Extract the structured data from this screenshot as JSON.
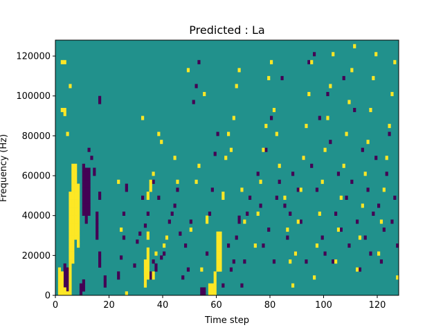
{
  "chart_data": {
    "type": "heatmap",
    "title": "Predicted : La",
    "xlabel": "Time step",
    "ylabel": "Frequency (Hz)",
    "xlim": [
      0,
      128
    ],
    "ylim": [
      0,
      128000
    ],
    "x_ticks": [
      0,
      20,
      40,
      60,
      80,
      100,
      120
    ],
    "x_tick_labels": [
      "0",
      "20",
      "40",
      "60",
      "80",
      "100",
      "120"
    ],
    "y_ticks": [
      0,
      20000,
      40000,
      60000,
      80000,
      100000,
      120000
    ],
    "y_tick_labels": [
      "0",
      "20000",
      "40000",
      "60000",
      "80000",
      "100000",
      "120000"
    ],
    "grid": false,
    "n_time_steps": 128,
    "n_frequency_bins": 64,
    "bin_height_hz": 2000,
    "value_levels": {
      "low": -1,
      "mid": 0,
      "high": 1
    },
    "colors": {
      "low": "#440154",
      "mid": "#21918c",
      "high": "#fde725"
    },
    "background_value": 0,
    "low_cells": [
      [
        3,
        2
      ],
      [
        3,
        3
      ],
      [
        3,
        4
      ],
      [
        3,
        5
      ],
      [
        3,
        6
      ],
      [
        3,
        7
      ],
      [
        4,
        1
      ],
      [
        4,
        2
      ],
      [
        4,
        3
      ],
      [
        4,
        4
      ],
      [
        4,
        5
      ],
      [
        4,
        6
      ],
      [
        9,
        0
      ],
      [
        9,
        1
      ],
      [
        9,
        2
      ],
      [
        10,
        1
      ],
      [
        10,
        2
      ],
      [
        10,
        3
      ],
      [
        10,
        20
      ],
      [
        10,
        21
      ],
      [
        10,
        22
      ],
      [
        10,
        23
      ],
      [
        10,
        24
      ],
      [
        10,
        25
      ],
      [
        10,
        26
      ],
      [
        10,
        27
      ],
      [
        10,
        28
      ],
      [
        10,
        29
      ],
      [
        10,
        30
      ],
      [
        10,
        31
      ],
      [
        10,
        32
      ],
      [
        11,
        18
      ],
      [
        11,
        19
      ],
      [
        11,
        20
      ],
      [
        11,
        21
      ],
      [
        11,
        22
      ],
      [
        11,
        23
      ],
      [
        11,
        24
      ],
      [
        11,
        25
      ],
      [
        11,
        26
      ],
      [
        11,
        27
      ],
      [
        11,
        28
      ],
      [
        11,
        29
      ],
      [
        11,
        30
      ],
      [
        11,
        31
      ],
      [
        12,
        20
      ],
      [
        12,
        21
      ],
      [
        12,
        22
      ],
      [
        12,
        23
      ],
      [
        12,
        24
      ],
      [
        12,
        25
      ],
      [
        12,
        26
      ],
      [
        12,
        27
      ],
      [
        12,
        28
      ],
      [
        12,
        29
      ],
      [
        12,
        30
      ],
      [
        12,
        31
      ],
      [
        12,
        36
      ],
      [
        13,
        34
      ],
      [
        14,
        30
      ],
      [
        14,
        31
      ],
      [
        15,
        14
      ],
      [
        15,
        15
      ],
      [
        15,
        16
      ],
      [
        15,
        17
      ],
      [
        15,
        18
      ],
      [
        15,
        19
      ],
      [
        15,
        20
      ],
      [
        16,
        7
      ],
      [
        16,
        8
      ],
      [
        16,
        9
      ],
      [
        16,
        10
      ],
      [
        16,
        24
      ],
      [
        16,
        25
      ],
      [
        16,
        48
      ],
      [
        16,
        49
      ],
      [
        18,
        2
      ],
      [
        18,
        3
      ],
      [
        18,
        4
      ],
      [
        23,
        4
      ],
      [
        23,
        5
      ],
      [
        24,
        9
      ],
      [
        25,
        14
      ],
      [
        25,
        20
      ],
      [
        26,
        26
      ],
      [
        26,
        27
      ],
      [
        29,
        7
      ],
      [
        30,
        13
      ],
      [
        31,
        15
      ],
      [
        32,
        24
      ],
      [
        33,
        3
      ],
      [
        33,
        4
      ],
      [
        33,
        17
      ],
      [
        34,
        20
      ],
      [
        35,
        4
      ],
      [
        35,
        5
      ],
      [
        36,
        8
      ],
      [
        36,
        28
      ],
      [
        37,
        6
      ],
      [
        37,
        7
      ],
      [
        38,
        24
      ],
      [
        39,
        9
      ],
      [
        40,
        10
      ],
      [
        41,
        14
      ],
      [
        42,
        18
      ],
      [
        43,
        20
      ],
      [
        44,
        22
      ],
      [
        45,
        26
      ],
      [
        46,
        15
      ],
      [
        47,
        4
      ],
      [
        48,
        12
      ],
      [
        49,
        6
      ],
      [
        50,
        18
      ],
      [
        51,
        48
      ],
      [
        52,
        52
      ],
      [
        53,
        58
      ],
      [
        54,
        0
      ],
      [
        54,
        1
      ],
      [
        55,
        0
      ],
      [
        55,
        1
      ],
      [
        56,
        10
      ],
      [
        57,
        20
      ],
      [
        58,
        26
      ],
      [
        59,
        35
      ],
      [
        60,
        40
      ],
      [
        62,
        2
      ],
      [
        64,
        12
      ],
      [
        65,
        6
      ],
      [
        66,
        8
      ],
      [
        67,
        14
      ],
      [
        68,
        18
      ],
      [
        68,
        19
      ],
      [
        69,
        2
      ],
      [
        70,
        8
      ],
      [
        71,
        20
      ],
      [
        72,
        24
      ],
      [
        75,
        30
      ],
      [
        76,
        22
      ],
      [
        77,
        12
      ],
      [
        78,
        36
      ],
      [
        79,
        16
      ],
      [
        80,
        44
      ],
      [
        81,
        8
      ],
      [
        82,
        24
      ],
      [
        83,
        28
      ],
      [
        84,
        54
      ],
      [
        85,
        22
      ],
      [
        86,
        14
      ],
      [
        87,
        20
      ],
      [
        88,
        30
      ],
      [
        89,
        10
      ],
      [
        90,
        26
      ],
      [
        91,
        18
      ],
      [
        92,
        34
      ],
      [
        93,
        8
      ],
      [
        94,
        58
      ],
      [
        95,
        32
      ],
      [
        96,
        60
      ],
      [
        97,
        26
      ],
      [
        98,
        44
      ],
      [
        99,
        14
      ],
      [
        100,
        10
      ],
      [
        101,
        50
      ],
      [
        102,
        38
      ],
      [
        103,
        8
      ],
      [
        104,
        20
      ],
      [
        105,
        30
      ],
      [
        106,
        16
      ],
      [
        107,
        54
      ],
      [
        108,
        24
      ],
      [
        109,
        12
      ],
      [
        110,
        28
      ],
      [
        111,
        46
      ],
      [
        112,
        18
      ],
      [
        113,
        6
      ],
      [
        114,
        36
      ],
      [
        115,
        14
      ],
      [
        116,
        26
      ],
      [
        117,
        10
      ],
      [
        118,
        20
      ],
      [
        119,
        34
      ],
      [
        120,
        22
      ],
      [
        121,
        8
      ],
      [
        122,
        16
      ],
      [
        123,
        30
      ],
      [
        124,
        40
      ],
      [
        125,
        18
      ],
      [
        126,
        24
      ],
      [
        127,
        12
      ]
    ],
    "high_cells": [
      [
        1,
        0
      ],
      [
        1,
        1
      ],
      [
        1,
        2
      ],
      [
        1,
        3
      ],
      [
        1,
        4
      ],
      [
        1,
        5
      ],
      [
        1,
        6
      ],
      [
        2,
        0
      ],
      [
        2,
        1
      ],
      [
        2,
        2
      ],
      [
        2,
        3
      ],
      [
        2,
        4
      ],
      [
        2,
        5
      ],
      [
        3,
        0
      ],
      [
        3,
        1
      ],
      [
        4,
        0
      ],
      [
        5,
        0
      ],
      [
        5,
        1
      ],
      [
        5,
        2
      ],
      [
        5,
        3
      ],
      [
        5,
        4
      ],
      [
        5,
        5
      ],
      [
        5,
        6
      ],
      [
        5,
        7
      ],
      [
        5,
        8
      ],
      [
        5,
        9
      ],
      [
        5,
        10
      ],
      [
        5,
        11
      ],
      [
        5,
        12
      ],
      [
        5,
        13
      ],
      [
        5,
        14
      ],
      [
        5,
        15
      ],
      [
        5,
        16
      ],
      [
        5,
        17
      ],
      [
        5,
        18
      ],
      [
        5,
        19
      ],
      [
        5,
        20
      ],
      [
        5,
        21
      ],
      [
        5,
        22
      ],
      [
        5,
        23
      ],
      [
        5,
        24
      ],
      [
        5,
        25
      ],
      [
        6,
        8
      ],
      [
        6,
        9
      ],
      [
        6,
        10
      ],
      [
        6,
        11
      ],
      [
        6,
        12
      ],
      [
        6,
        13
      ],
      [
        6,
        14
      ],
      [
        6,
        15
      ],
      [
        6,
        16
      ],
      [
        6,
        17
      ],
      [
        6,
        18
      ],
      [
        6,
        19
      ],
      [
        6,
        20
      ],
      [
        6,
        21
      ],
      [
        6,
        22
      ],
      [
        6,
        23
      ],
      [
        6,
        24
      ],
      [
        6,
        25
      ],
      [
        6,
        26
      ],
      [
        6,
        27
      ],
      [
        6,
        28
      ],
      [
        6,
        29
      ],
      [
        6,
        30
      ],
      [
        6,
        31
      ],
      [
        6,
        32
      ],
      [
        7,
        14
      ],
      [
        7,
        15
      ],
      [
        7,
        16
      ],
      [
        7,
        17
      ],
      [
        7,
        18
      ],
      [
        7,
        19
      ],
      [
        7,
        20
      ],
      [
        7,
        21
      ],
      [
        7,
        22
      ],
      [
        7,
        23
      ],
      [
        7,
        24
      ],
      [
        7,
        25
      ],
      [
        7,
        26
      ],
      [
        7,
        27
      ],
      [
        7,
        28
      ],
      [
        7,
        29
      ],
      [
        7,
        30
      ],
      [
        7,
        31
      ],
      [
        7,
        32
      ],
      [
        8,
        12
      ],
      [
        8,
        13
      ],
      [
        8,
        14
      ],
      [
        8,
        15
      ],
      [
        8,
        16
      ],
      [
        8,
        17
      ],
      [
        8,
        18
      ],
      [
        8,
        19
      ],
      [
        8,
        20
      ],
      [
        8,
        21
      ],
      [
        8,
        22
      ],
      [
        8,
        23
      ],
      [
        8,
        24
      ],
      [
        8,
        25
      ],
      [
        8,
        26
      ],
      [
        8,
        27
      ],
      [
        3,
        45
      ],
      [
        3,
        46
      ],
      [
        2,
        46
      ],
      [
        4,
        40
      ],
      [
        3,
        58
      ],
      [
        2,
        58
      ],
      [
        5,
        52
      ],
      [
        23,
        28
      ],
      [
        24,
        16
      ],
      [
        26,
        0
      ],
      [
        32,
        44
      ],
      [
        33,
        2
      ],
      [
        33,
        3
      ],
      [
        33,
        4
      ],
      [
        33,
        5
      ],
      [
        33,
        6
      ],
      [
        33,
        7
      ],
      [
        33,
        8
      ],
      [
        34,
        4
      ],
      [
        34,
        5
      ],
      [
        34,
        6
      ],
      [
        34,
        7
      ],
      [
        34,
        8
      ],
      [
        34,
        9
      ],
      [
        34,
        10
      ],
      [
        34,
        11
      ],
      [
        34,
        14
      ],
      [
        34,
        15
      ],
      [
        34,
        24
      ],
      [
        34,
        25
      ],
      [
        35,
        26
      ],
      [
        35,
        27
      ],
      [
        35,
        28
      ],
      [
        36,
        4
      ],
      [
        36,
        5
      ],
      [
        36,
        30
      ],
      [
        37,
        10
      ],
      [
        38,
        40
      ],
      [
        39,
        38
      ],
      [
        40,
        12
      ],
      [
        41,
        14
      ],
      [
        44,
        34
      ],
      [
        45,
        28
      ],
      [
        49,
        56
      ],
      [
        50,
        16
      ],
      [
        52,
        28
      ],
      [
        53,
        32
      ],
      [
        54,
        6
      ],
      [
        55,
        50
      ],
      [
        56,
        18
      ],
      [
        56,
        19
      ],
      [
        57,
        0
      ],
      [
        57,
        1
      ],
      [
        57,
        2
      ],
      [
        58,
        0
      ],
      [
        58,
        1
      ],
      [
        58,
        2
      ],
      [
        59,
        0
      ],
      [
        59,
        1
      ],
      [
        59,
        2
      ],
      [
        59,
        3
      ],
      [
        59,
        4
      ],
      [
        59,
        5
      ],
      [
        60,
        6
      ],
      [
        60,
        7
      ],
      [
        60,
        8
      ],
      [
        60,
        9
      ],
      [
        60,
        10
      ],
      [
        60,
        11
      ],
      [
        60,
        12
      ],
      [
        60,
        13
      ],
      [
        60,
        14
      ],
      [
        60,
        15
      ],
      [
        61,
        6
      ],
      [
        61,
        7
      ],
      [
        61,
        8
      ],
      [
        61,
        9
      ],
      [
        61,
        10
      ],
      [
        61,
        11
      ],
      [
        61,
        12
      ],
      [
        61,
        13
      ],
      [
        61,
        14
      ],
      [
        61,
        15
      ],
      [
        62,
        24
      ],
      [
        62,
        25
      ],
      [
        63,
        34
      ],
      [
        64,
        40
      ],
      [
        65,
        36
      ],
      [
        66,
        44
      ],
      [
        67,
        52
      ],
      [
        68,
        56
      ],
      [
        69,
        26
      ],
      [
        70,
        18
      ],
      [
        74,
        12
      ],
      [
        75,
        20
      ],
      [
        76,
        28
      ],
      [
        77,
        36
      ],
      [
        78,
        42
      ],
      [
        79,
        54
      ],
      [
        80,
        58
      ],
      [
        81,
        46
      ],
      [
        82,
        40
      ],
      [
        83,
        32
      ],
      [
        85,
        24
      ],
      [
        86,
        16
      ],
      [
        87,
        8
      ],
      [
        88,
        2
      ],
      [
        89,
        10
      ],
      [
        90,
        18
      ],
      [
        91,
        26
      ],
      [
        92,
        34
      ],
      [
        93,
        42
      ],
      [
        94,
        50
      ],
      [
        95,
        58
      ],
      [
        96,
        4
      ],
      [
        97,
        12
      ],
      [
        98,
        20
      ],
      [
        99,
        28
      ],
      [
        100,
        36
      ],
      [
        101,
        44
      ],
      [
        102,
        52
      ],
      [
        103,
        60
      ],
      [
        104,
        8
      ],
      [
        105,
        16
      ],
      [
        106,
        24
      ],
      [
        107,
        32
      ],
      [
        108,
        40
      ],
      [
        109,
        48
      ],
      [
        110,
        56
      ],
      [
        111,
        62
      ],
      [
        112,
        6
      ],
      [
        113,
        14
      ],
      [
        114,
        22
      ],
      [
        115,
        30
      ],
      [
        116,
        38
      ],
      [
        117,
        46
      ],
      [
        118,
        54
      ],
      [
        119,
        60
      ],
      [
        120,
        10
      ],
      [
        121,
        18
      ],
      [
        122,
        26
      ],
      [
        123,
        34
      ],
      [
        124,
        42
      ],
      [
        125,
        50
      ],
      [
        126,
        58
      ],
      [
        127,
        4
      ]
    ]
  }
}
